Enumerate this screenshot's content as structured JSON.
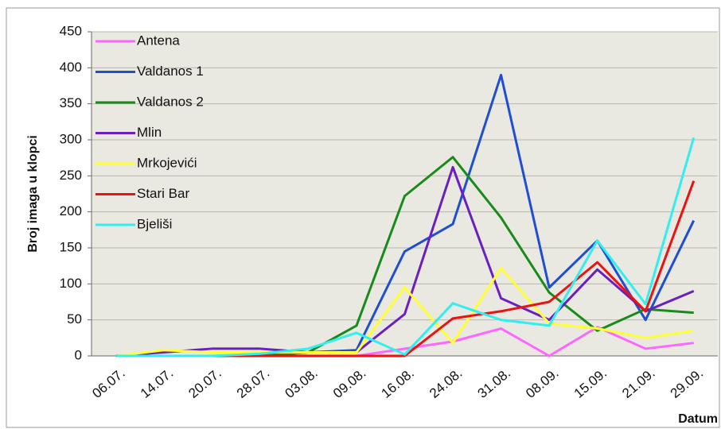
{
  "chart_data": {
    "type": "line",
    "y_label": "Broj imaga u klopci",
    "x_label": "Datum",
    "categories": [
      "06.07.",
      "14.07.",
      "20.07.",
      "28.07.",
      "03.08.",
      "09.08.",
      "16.08.",
      "24.08.",
      "31.08.",
      "08.09.",
      "15.09.",
      "21.09.",
      "29.09."
    ],
    "series": [
      {
        "name": "Antena",
        "color": "#ff66ff",
        "values": [
          0,
          0,
          0,
          0,
          0,
          0,
          10,
          20,
          38,
          0,
          40,
          10,
          18
        ]
      },
      {
        "name": "Valdanos 1",
        "color": "#1f4fd0",
        "values": [
          0,
          0,
          0,
          0,
          5,
          8,
          145,
          183,
          390,
          95,
          160,
          50,
          188
        ]
      },
      {
        "name": "Valdanos 2",
        "color": "#1a8a1a",
        "values": [
          0,
          0,
          0,
          0,
          5,
          42,
          222,
          276,
          192,
          88,
          35,
          65,
          60
        ]
      },
      {
        "name": "Mlin",
        "color": "#6a1fc0",
        "values": [
          0,
          5,
          10,
          10,
          5,
          5,
          58,
          262,
          80,
          50,
          120,
          62,
          90
        ]
      },
      {
        "name": "Mrkojevići",
        "color": "#ffff33",
        "values": [
          0,
          8,
          5,
          5,
          5,
          5,
          95,
          18,
          122,
          45,
          38,
          25,
          35
        ]
      },
      {
        "name": "Stari Bar",
        "color": "#ee1111",
        "values": [
          0,
          0,
          0,
          0,
          0,
          0,
          0,
          52,
          62,
          75,
          130,
          62,
          243
        ]
      },
      {
        "name": "Bjeliši",
        "color": "#33eeee",
        "values": [
          0,
          0,
          0,
          3,
          10,
          32,
          2,
          73,
          50,
          42,
          160,
          72,
          303
        ]
      }
    ],
    "ylim": [
      0,
      450
    ],
    "yticks": [
      0,
      50,
      100,
      150,
      200,
      250,
      300,
      350,
      400,
      450
    ],
    "grid": true,
    "legend": "upper left"
  }
}
